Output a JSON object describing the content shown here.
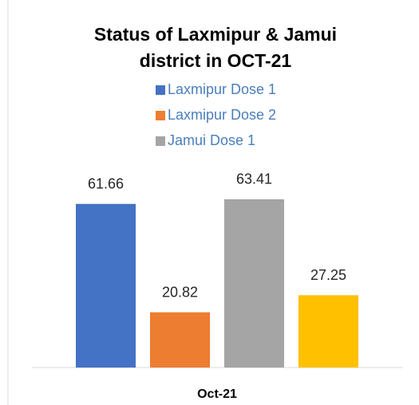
{
  "chart_data": {
    "type": "bar",
    "title": [
      "Status of Laxmipur & Jamui",
      "district in OCT-21"
    ],
    "categories": [
      "Oct-21"
    ],
    "series": [
      {
        "name": "Laxmipur Dose 1",
        "color": "#4472c4",
        "values": [
          61.66
        ]
      },
      {
        "name": "Laxmipur Dose 2",
        "color": "#ed7d31",
        "values": [
          20.82
        ]
      },
      {
        "name": "Jamui Dose 1",
        "color": "#a5a5a5",
        "values": [
          63.41
        ]
      },
      {
        "color": "#ffc000",
        "values": [
          27.25
        ]
      }
    ],
    "ylim": [
      0,
      70
    ]
  }
}
